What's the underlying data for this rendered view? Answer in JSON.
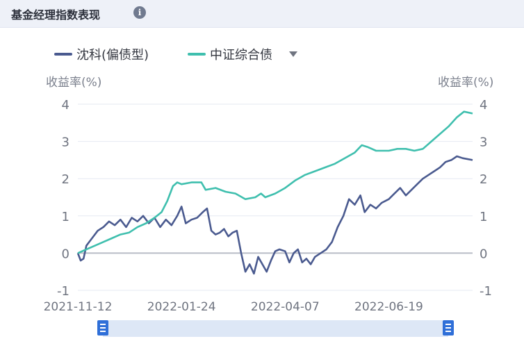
{
  "header": {
    "title": "基金经理指数表现",
    "info_icon": "info-icon",
    "info_glyph": "i"
  },
  "legend": {
    "items": [
      {
        "label": "沈科(偏债型)",
        "color": "#4a5a8f"
      },
      {
        "label": "中证综合债",
        "color": "#3fbfae"
      }
    ]
  },
  "axes": {
    "left_title": "收益率(%)",
    "right_title": "收益率(%)"
  },
  "chart_data": {
    "type": "line",
    "xlabel": "",
    "ylabel": "收益率(%)",
    "ylim": [
      -1,
      4
    ],
    "yticks": [
      4,
      3,
      2,
      1,
      0,
      -1
    ],
    "xtick_labels": [
      "2021-11-12",
      "2022-01-24",
      "2022-04-07",
      "2022-06-19"
    ],
    "x_range": [
      "2021-11-12",
      "2022-08-17"
    ],
    "legend_position": "top-left",
    "grid": true,
    "series": [
      {
        "name": "沈科(偏债型)",
        "color": "#4a5a8f",
        "points": [
          [
            "2021-11-12",
            0.0
          ],
          [
            "2021-11-14",
            -0.2
          ],
          [
            "2021-11-16",
            -0.15
          ],
          [
            "2021-11-18",
            0.2
          ],
          [
            "2021-11-22",
            0.4
          ],
          [
            "2021-11-26",
            0.6
          ],
          [
            "2021-11-30",
            0.7
          ],
          [
            "2021-12-04",
            0.85
          ],
          [
            "2021-12-08",
            0.75
          ],
          [
            "2021-12-12",
            0.9
          ],
          [
            "2021-12-16",
            0.7
          ],
          [
            "2021-12-20",
            0.95
          ],
          [
            "2021-12-24",
            0.85
          ],
          [
            "2021-12-28",
            1.0
          ],
          [
            "2022-01-01",
            0.8
          ],
          [
            "2022-01-05",
            0.95
          ],
          [
            "2022-01-09",
            0.7
          ],
          [
            "2022-01-13",
            0.9
          ],
          [
            "2022-01-17",
            0.75
          ],
          [
            "2022-01-21",
            1.0
          ],
          [
            "2022-01-24",
            1.25
          ],
          [
            "2022-01-27",
            0.8
          ],
          [
            "2022-01-31",
            0.9
          ],
          [
            "2022-02-04",
            0.95
          ],
          [
            "2022-02-08",
            1.1
          ],
          [
            "2022-02-11",
            1.2
          ],
          [
            "2022-02-14",
            0.6
          ],
          [
            "2022-02-17",
            0.5
          ],
          [
            "2022-02-20",
            0.55
          ],
          [
            "2022-02-23",
            0.65
          ],
          [
            "2022-02-26",
            0.45
          ],
          [
            "2022-03-01",
            0.55
          ],
          [
            "2022-03-04",
            0.6
          ],
          [
            "2022-03-07",
            0.0
          ],
          [
            "2022-03-10",
            -0.5
          ],
          [
            "2022-03-13",
            -0.3
          ],
          [
            "2022-03-16",
            -0.55
          ],
          [
            "2022-03-19",
            -0.1
          ],
          [
            "2022-03-22",
            -0.3
          ],
          [
            "2022-03-25",
            -0.5
          ],
          [
            "2022-03-28",
            -0.2
          ],
          [
            "2022-03-31",
            0.05
          ],
          [
            "2022-04-03",
            0.1
          ],
          [
            "2022-04-07",
            0.05
          ],
          [
            "2022-04-10",
            -0.25
          ],
          [
            "2022-04-13",
            0.0
          ],
          [
            "2022-04-16",
            0.1
          ],
          [
            "2022-04-19",
            -0.25
          ],
          [
            "2022-04-22",
            -0.15
          ],
          [
            "2022-04-25",
            -0.3
          ],
          [
            "2022-04-28",
            -0.1
          ],
          [
            "2022-05-02",
            0.0
          ],
          [
            "2022-05-06",
            0.1
          ],
          [
            "2022-05-10",
            0.3
          ],
          [
            "2022-05-14",
            0.7
          ],
          [
            "2022-05-18",
            1.0
          ],
          [
            "2022-05-22",
            1.45
          ],
          [
            "2022-05-26",
            1.3
          ],
          [
            "2022-05-30",
            1.55
          ],
          [
            "2022-06-02",
            1.1
          ],
          [
            "2022-06-06",
            1.3
          ],
          [
            "2022-06-10",
            1.2
          ],
          [
            "2022-06-14",
            1.35
          ],
          [
            "2022-06-19",
            1.45
          ],
          [
            "2022-06-23",
            1.6
          ],
          [
            "2022-06-27",
            1.75
          ],
          [
            "2022-07-01",
            1.55
          ],
          [
            "2022-07-05",
            1.7
          ],
          [
            "2022-07-09",
            1.85
          ],
          [
            "2022-07-13",
            2.0
          ],
          [
            "2022-07-17",
            2.1
          ],
          [
            "2022-07-21",
            2.2
          ],
          [
            "2022-07-25",
            2.3
          ],
          [
            "2022-07-29",
            2.45
          ],
          [
            "2022-08-02",
            2.5
          ],
          [
            "2022-08-06",
            2.6
          ],
          [
            "2022-08-10",
            2.55
          ],
          [
            "2022-08-17",
            2.5
          ]
        ]
      },
      {
        "name": "中证综合债",
        "color": "#3fbfae",
        "points": [
          [
            "2021-11-12",
            0.0
          ],
          [
            "2021-11-18",
            0.1
          ],
          [
            "2021-11-24",
            0.2
          ],
          [
            "2021-11-30",
            0.3
          ],
          [
            "2021-12-06",
            0.4
          ],
          [
            "2021-12-12",
            0.5
          ],
          [
            "2021-12-18",
            0.55
          ],
          [
            "2021-12-24",
            0.7
          ],
          [
            "2021-12-30",
            0.8
          ],
          [
            "2022-01-05",
            0.95
          ],
          [
            "2022-01-10",
            1.1
          ],
          [
            "2022-01-14",
            1.4
          ],
          [
            "2022-01-18",
            1.8
          ],
          [
            "2022-01-21",
            1.9
          ],
          [
            "2022-01-24",
            1.85
          ],
          [
            "2022-01-31",
            1.9
          ],
          [
            "2022-02-07",
            1.9
          ],
          [
            "2022-02-10",
            1.7
          ],
          [
            "2022-02-17",
            1.75
          ],
          [
            "2022-02-24",
            1.65
          ],
          [
            "2022-03-03",
            1.6
          ],
          [
            "2022-03-10",
            1.45
          ],
          [
            "2022-03-17",
            1.5
          ],
          [
            "2022-03-21",
            1.6
          ],
          [
            "2022-03-24",
            1.5
          ],
          [
            "2022-03-31",
            1.6
          ],
          [
            "2022-04-07",
            1.75
          ],
          [
            "2022-04-14",
            1.95
          ],
          [
            "2022-04-21",
            2.1
          ],
          [
            "2022-04-28",
            2.2
          ],
          [
            "2022-05-05",
            2.3
          ],
          [
            "2022-05-12",
            2.4
          ],
          [
            "2022-05-19",
            2.55
          ],
          [
            "2022-05-26",
            2.7
          ],
          [
            "2022-05-31",
            2.9
          ],
          [
            "2022-06-04",
            2.85
          ],
          [
            "2022-06-10",
            2.75
          ],
          [
            "2022-06-19",
            2.75
          ],
          [
            "2022-06-25",
            2.8
          ],
          [
            "2022-07-01",
            2.8
          ],
          [
            "2022-07-07",
            2.75
          ],
          [
            "2022-07-13",
            2.8
          ],
          [
            "2022-07-19",
            3.0
          ],
          [
            "2022-07-25",
            3.2
          ],
          [
            "2022-07-31",
            3.4
          ],
          [
            "2022-08-06",
            3.65
          ],
          [
            "2022-08-11",
            3.8
          ],
          [
            "2022-08-17",
            3.75
          ]
        ]
      }
    ]
  },
  "zoom_slider": {
    "start": 0.0,
    "end": 1.0
  }
}
